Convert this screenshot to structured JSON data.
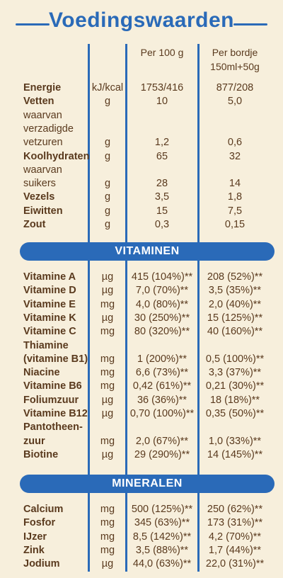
{
  "title": "Voedingswaarden",
  "header": {
    "per100": "Per 100 g",
    "perBordje1": "Per bordje",
    "perBordje2": "150ml+50g"
  },
  "nutrients": [
    {
      "name": "Energie",
      "unit": "kJ/kcal",
      "v100": "1753/416",
      "vb": "877/208"
    },
    {
      "name": "Vetten",
      "unit": "g",
      "v100": "10",
      "vb": "5,0"
    },
    {
      "name": "waarvan",
      "sub": true,
      "unit": "",
      "v100": "",
      "vb": ""
    },
    {
      "name": "verzadigde",
      "sub": true,
      "unit": "",
      "v100": "",
      "vb": ""
    },
    {
      "name": "vetzuren",
      "sub": true,
      "unit": "g",
      "v100": "1,2",
      "vb": "0,6"
    },
    {
      "name": "Koolhydraten",
      "unit": "g",
      "v100": "65",
      "vb": "32"
    },
    {
      "name": "waarvan",
      "sub": true,
      "unit": "",
      "v100": "",
      "vb": ""
    },
    {
      "name": "suikers",
      "sub": true,
      "unit": "g",
      "v100": "28",
      "vb": "14"
    },
    {
      "name": "Vezels",
      "unit": "g",
      "v100": "3,5",
      "vb": "1,8"
    },
    {
      "name": "Eiwitten",
      "unit": "g",
      "v100": "15",
      "vb": "7,5"
    },
    {
      "name": "Zout",
      "unit": "g",
      "v100": "0,3",
      "vb": "0,15"
    }
  ],
  "vitamins_label": "VITAMINEN",
  "vitamins": [
    {
      "name": "Vitamine A",
      "unit": "µg",
      "v100": "415 (104%)**",
      "vb": "208 (52%)**"
    },
    {
      "name": "Vitamine D",
      "unit": "µg",
      "v100": "7,0 (70%)**",
      "vb": "3,5 (35%)**"
    },
    {
      "name": "Vitamine E",
      "unit": "mg",
      "v100": "4,0 (80%)**",
      "vb": "2,0 (40%)**"
    },
    {
      "name": "Vitamine K",
      "unit": "µg",
      "v100": "30 (250%)**",
      "vb": "15 (125%)**"
    },
    {
      "name": "Vitamine C",
      "unit": "mg",
      "v100": "80 (320%)**",
      "vb": "40 (160%)**"
    },
    {
      "name": "Thiamine",
      "unit": "",
      "v100": "",
      "vb": ""
    },
    {
      "name": "(vitamine B1)",
      "unit": "mg",
      "v100": "1 (200%)**",
      "vb": "0,5 (100%)**"
    },
    {
      "name": "Niacine",
      "unit": "mg",
      "v100": "6,6 (73%)**",
      "vb": "3,3 (37%)**"
    },
    {
      "name": "Vitamine B6",
      "unit": "mg",
      "v100": "0,42 (61%)**",
      "vb": "0,21 (30%)**"
    },
    {
      "name": "Foliumzuur",
      "unit": "µg",
      "v100": "36 (36%)**",
      "vb": "18 (18%)**"
    },
    {
      "name": "Vitamine B12",
      "unit": "µg",
      "v100": "0,70 (100%)**",
      "vb": "0,35 (50%)**"
    },
    {
      "name": "Pantotheen-",
      "unit": "",
      "v100": "",
      "vb": ""
    },
    {
      "name": "zuur",
      "unit": "mg",
      "v100": "2,0 (67%)**",
      "vb": "1,0 (33%)**"
    },
    {
      "name": "Biotine",
      "unit": "µg",
      "v100": "29 (290%)**",
      "vb": "14 (145%)**"
    }
  ],
  "minerals_label": "MINERALEN",
  "minerals": [
    {
      "name": "Calcium",
      "unit": "mg",
      "v100": "500 (125%)**",
      "vb": "250 (62%)**"
    },
    {
      "name": "Fosfor",
      "unit": "mg",
      "v100": "345 (63%)**",
      "vb": "173 (31%)**"
    },
    {
      "name": "IJzer",
      "unit": "mg",
      "v100": "8,5 (142%)**",
      "vb": "4,2 (70%)**"
    },
    {
      "name": "Zink",
      "unit": "mg",
      "v100": "3,5 (88%)**",
      "vb": "1,7 (44%)**"
    },
    {
      "name": "Jodium",
      "unit": "µg",
      "v100": "44,0 (63%)**",
      "vb": "22,0 (31%)**"
    }
  ]
}
